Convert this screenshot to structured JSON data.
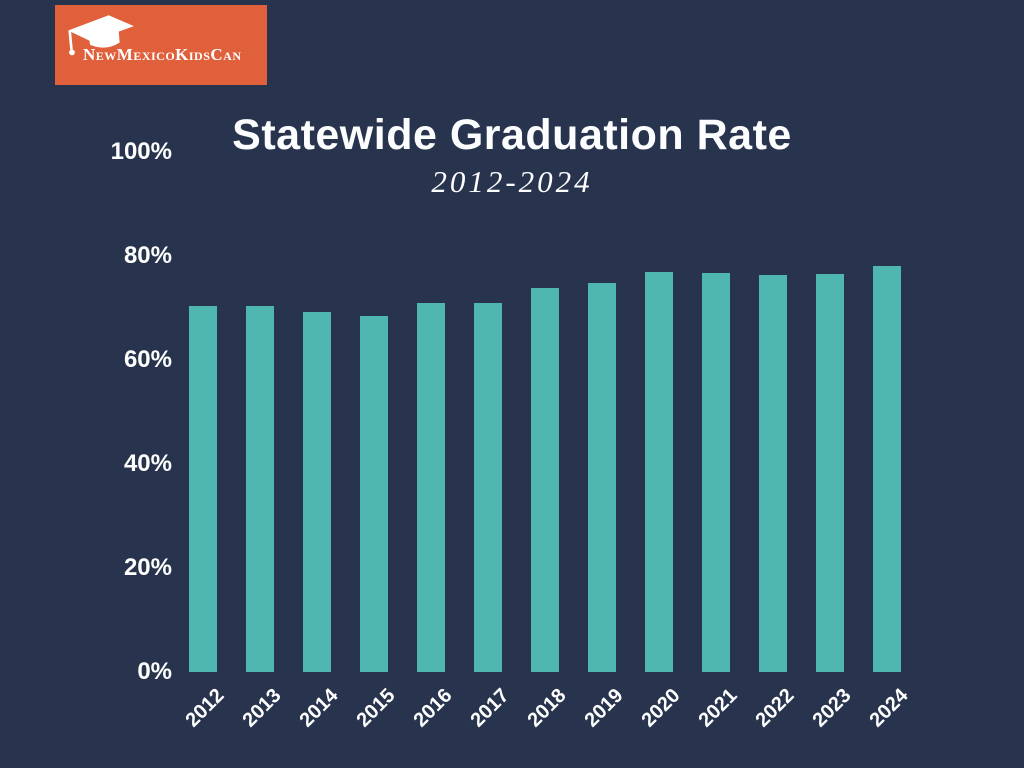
{
  "logo": {
    "brand_text": "NewMexicoKidsCan",
    "icon": "graduation-cap-icon",
    "background_color": "#E0603C",
    "text_color": "#FFFFFF"
  },
  "chart_data": {
    "type": "bar",
    "title": "Statewide Graduation Rate",
    "subtitle": "2012-2024",
    "categories": [
      "2012",
      "2013",
      "2014",
      "2015",
      "2016",
      "2017",
      "2018",
      "2019",
      "2020",
      "2021",
      "2022",
      "2023",
      "2024"
    ],
    "values": [
      70.3,
      70.3,
      69.2,
      68.4,
      70.9,
      70.9,
      73.8,
      74.8,
      76.9,
      76.8,
      76.4,
      76.6,
      78.1
    ],
    "unit": "%",
    "xlabel": "",
    "ylabel": "",
    "ylim": [
      0,
      100
    ],
    "y_ticks": [
      {
        "label": "0%",
        "value": 0
      },
      {
        "label": "20%",
        "value": 20
      },
      {
        "label": "40%",
        "value": 40
      },
      {
        "label": "60%",
        "value": 60
      },
      {
        "label": "80%",
        "value": 80
      },
      {
        "label": "100%",
        "value": 100
      }
    ],
    "grid": false,
    "legend": false,
    "bar_color": "#4FB6B0",
    "background_color": "#28344E",
    "text_color": "#FFFFFF"
  }
}
